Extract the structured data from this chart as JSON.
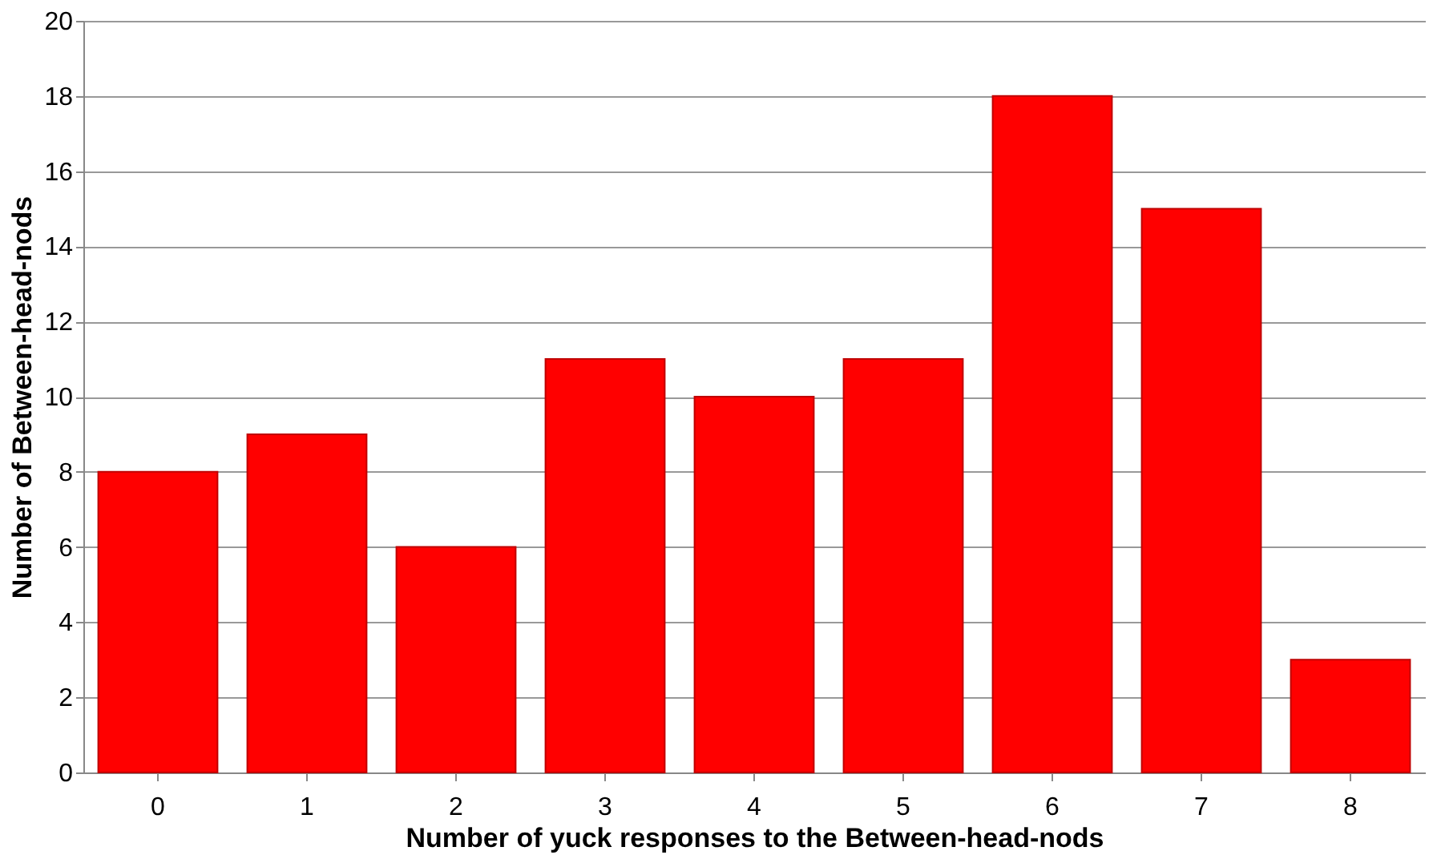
{
  "chart_data": {
    "type": "bar",
    "xlabel": "Number of yuck responses to the Between-head-nods",
    "ylabel": "Number of Between-head-nods",
    "categories": [
      "0",
      "1",
      "2",
      "3",
      "4",
      "5",
      "6",
      "7",
      "8"
    ],
    "values": [
      8,
      9,
      6,
      11,
      10,
      11,
      18,
      15,
      3
    ],
    "color": "#ff0000",
    "ylim": [
      0,
      20
    ],
    "yticks": [
      0,
      2,
      4,
      6,
      8,
      10,
      12,
      14,
      16,
      18,
      20
    ],
    "grid": "y"
  }
}
